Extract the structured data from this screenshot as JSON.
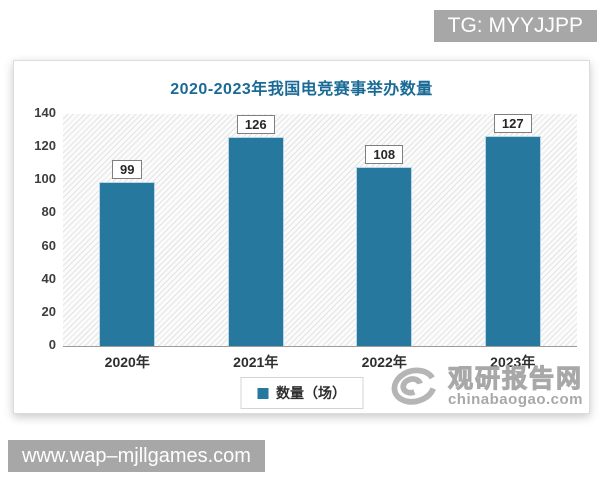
{
  "badges": {
    "tg": "TG: MYYJJPP",
    "site": "www.wap–mjllgames.com"
  },
  "chart_data": {
    "type": "bar",
    "title": "2020-2023年我国电竞赛事举办数量",
    "categories": [
      "2020年",
      "2021年",
      "2022年",
      "2023年"
    ],
    "values": [
      99,
      126,
      108,
      127
    ],
    "series": [
      {
        "name": "数量（场）",
        "values": [
          99,
          126,
          108,
          127
        ]
      }
    ],
    "legend_position": "bottom",
    "ylim": [
      0,
      140
    ],
    "yticks": [
      0,
      20,
      40,
      60,
      80,
      100,
      120,
      140
    ],
    "xlabel": "",
    "ylabel": "",
    "grid": false,
    "hatch_background": true,
    "bar_color": "#26789e",
    "title_color": "#1a6a96"
  },
  "watermark": {
    "brand": "观研报告网",
    "domain": "chinabaogao.com"
  }
}
